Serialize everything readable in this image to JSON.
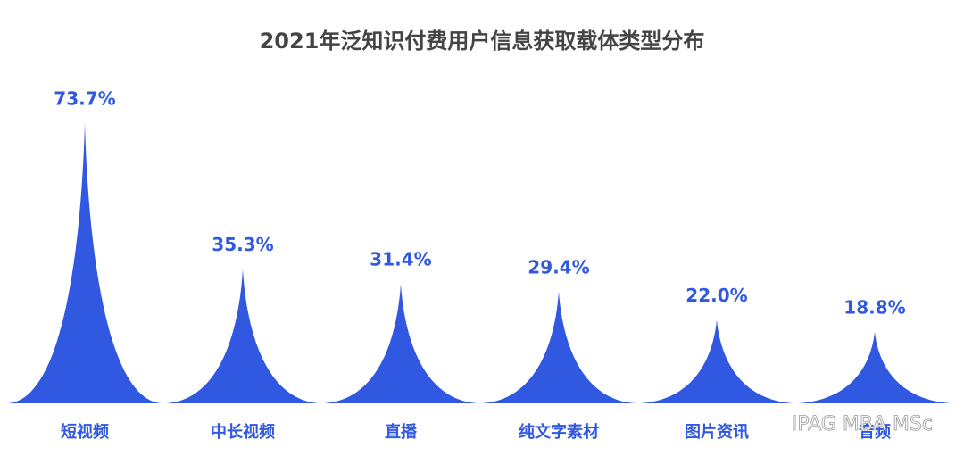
{
  "chart_data": {
    "type": "bar",
    "title": "2021年泛知识付费用户信息获取载体类型分布",
    "categories": [
      "短视频",
      "中长视频",
      "直播",
      "纯文字素材",
      "图片资讯",
      "音频"
    ],
    "values": [
      73.7,
      35.3,
      31.4,
      29.4,
      22.0,
      18.8
    ],
    "value_labels": [
      "73.7%",
      "35.3%",
      "31.4%",
      "29.4%",
      "22.0%",
      "18.8%"
    ],
    "color": "#3058e0"
  },
  "watermark": "IPAG MBA MSc"
}
